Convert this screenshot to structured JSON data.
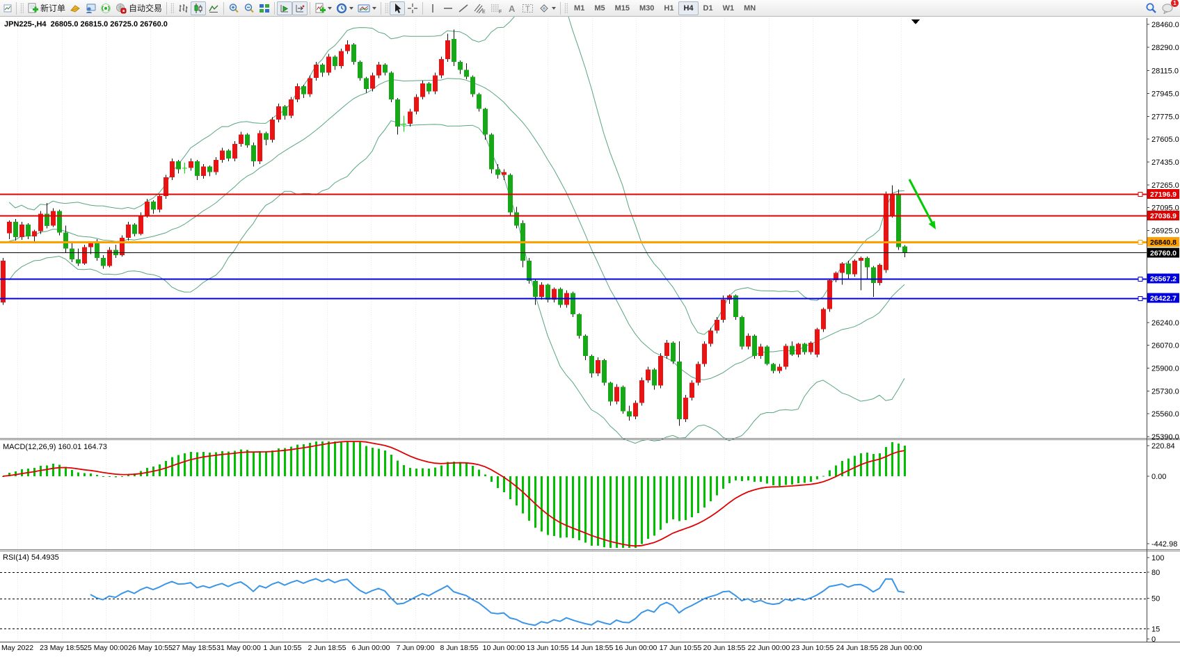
{
  "toolbar": {
    "new_order_label": "新订单",
    "autotrading_label": "自动交易",
    "timeframes": [
      "M1",
      "M5",
      "M15",
      "M30",
      "H1",
      "H4",
      "D1",
      "W1",
      "MN"
    ],
    "active_timeframe": "H4",
    "notification_count": "1",
    "icon_names": [
      "chart-window-icon",
      "new-order-icon",
      "market-watch-icon",
      "terminal-icon",
      "signals-icon",
      "autotrading-icon",
      "bar-chart-icon",
      "candlestick-icon",
      "line-chart-icon",
      "zoom-in-icon",
      "zoom-out-icon",
      "tile-windows-icon",
      "autoscroll-icon",
      "chart-shift-icon",
      "indicators-icon",
      "periods-clock-icon",
      "template-icon",
      "cursor-icon",
      "crosshair-icon",
      "vertical-line-icon",
      "horizontal-line-icon",
      "trendline-icon",
      "channel-icon",
      "fibonacci-icon",
      "text-icon",
      "text-label-icon",
      "shapes-icon",
      "search-icon",
      "notifications-icon"
    ]
  },
  "chart": {
    "symbol_label": "JPN225-,H4",
    "ohlc_label": "26805.0 26815.0 26725.0 26760.0",
    "price_ticks": [
      28460.0,
      28290.0,
      28115.0,
      27945.0,
      27775.0,
      27605.0,
      27435.0,
      27265.0,
      27095.0,
      26925.0,
      26240.0,
      26070.0,
      25900.0,
      25730.0,
      25560.0,
      25390.0
    ],
    "levels": [
      {
        "price": 27196.9,
        "label": "27196.9",
        "color": "#e10000",
        "width": 2,
        "text_color": "#ffffff",
        "handle": true
      },
      {
        "price": 27036.9,
        "label": "27036.9",
        "color": "#e10000",
        "width": 2,
        "text_color": "#ffffff",
        "handle": false
      },
      {
        "price": 26840.8,
        "label": "26840.8",
        "color": "#ffa000",
        "width": 3,
        "text_color": "#000000",
        "handle": true
      },
      {
        "price": 26760.0,
        "label": "26760.0",
        "color": "#000000",
        "width": 1,
        "text_color": "#ffffff",
        "handle": false
      },
      {
        "price": 26567.2,
        "label": "26567.2",
        "color": "#0000dd",
        "width": 2,
        "text_color": "#ffffff",
        "handle": true
      },
      {
        "price": 26422.7,
        "label": "26422.7",
        "color": "#0000dd",
        "width": 2,
        "text_color": "#ffffff",
        "handle": true
      }
    ],
    "time_labels": [
      "May 2022",
      "23 May 18:55",
      "25 May 00:00",
      "26 May 10:55",
      "27 May 18:55",
      "31 May 00:00",
      "1 Jun 10:55",
      "2 Jun 18:55",
      "6 Jun 00:00",
      "7 Jun 09:00",
      "8 Jun 18:55",
      "10 Jun 00:00",
      "13 Jun 10:55",
      "14 Jun 18:55",
      "16 Jun 00:00",
      "17 Jun 10:55",
      "20 Jun 18:55",
      "22 Jun 00:00",
      "23 Jun 10:55",
      "24 Jun 18:55",
      "28 Jun 00:00"
    ]
  },
  "macd_panel": {
    "label": "MACD(12,26,9) 160.01 164.73",
    "axis": [
      {
        "text": "220.84",
        "value": 220.84
      },
      {
        "text": "0.00",
        "value": 0
      },
      {
        "text": "-442.98",
        "value": -442.98
      }
    ]
  },
  "rsi_panel": {
    "label": "RSI(14) 54.4935",
    "axis": [
      {
        "text": "100",
        "value": 100
      },
      {
        "text": "80",
        "value": 80
      },
      {
        "text": "50",
        "value": 50
      },
      {
        "text": "15",
        "value": 15
      },
      {
        "text": "0",
        "value": 0
      }
    ],
    "dashed_levels": [
      80,
      50,
      15
    ]
  },
  "colors": {
    "bull_candle": "#e81414",
    "bear_candle": "#16a816",
    "doji_candle": "#00e000",
    "wick": "#111111",
    "bollinger": "#57a67e",
    "macd_hist": "#00c000",
    "macd_signal": "#e00000",
    "rsi_line": "#3a95e8",
    "annotation_arrow": "#00cc00",
    "grid": "#e9e9e9"
  },
  "chart_data": {
    "type": "candlestick",
    "symbol": "JPN225",
    "timeframe": "H4",
    "title": "JPN225-,H4 26805.0 26815.0 26725.0 26760.0",
    "y_range": [
      25390.0,
      28460.0
    ],
    "indicators": [
      {
        "name": "Bollinger Bands",
        "period": 20,
        "deviation": 2
      },
      {
        "name": "MACD",
        "params": [
          12,
          26,
          9
        ],
        "values": [
          160.01,
          164.73
        ],
        "y_range": [
          -442.98,
          220.84
        ]
      },
      {
        "name": "RSI",
        "params": [
          14
        ],
        "value": 54.4935,
        "levels": [
          80,
          50,
          15
        ],
        "y_range": [
          0,
          100
        ]
      }
    ],
    "ohlc": [
      [
        26390,
        26720,
        26370,
        26700
      ],
      [
        26905,
        27000,
        26860,
        26990
      ],
      [
        26990,
        27010,
        26850,
        26875
      ],
      [
        26875,
        26990,
        26855,
        26970
      ],
      [
        26970,
        26980,
        26860,
        26880
      ],
      [
        26880,
        26930,
        26830,
        26920
      ],
      [
        26920,
        27070,
        26900,
        27050
      ],
      [
        27050,
        27130,
        26940,
        26960
      ],
      [
        26960,
        27090,
        26950,
        27070
      ],
      [
        27070,
        27080,
        26890,
        26910
      ],
      [
        26910,
        26960,
        26760,
        26790
      ],
      [
        26790,
        26830,
        26690,
        26710
      ],
      [
        26710,
        26790,
        26660,
        26680
      ],
      [
        26680,
        26820,
        26670,
        26800
      ],
      [
        26800,
        26840,
        26750,
        26830
      ],
      [
        26830,
        26860,
        26700,
        26720
      ],
      [
        26720,
        26740,
        26640,
        26660
      ],
      [
        26660,
        26800,
        26650,
        26780
      ],
      [
        26780,
        26820,
        26720,
        26740
      ],
      [
        26740,
        26890,
        26730,
        26870
      ],
      [
        26870,
        26990,
        26850,
        26970
      ],
      [
        26970,
        26980,
        26880,
        26900
      ],
      [
        26900,
        27060,
        26890,
        27040
      ],
      [
        27040,
        27160,
        27020,
        27140
      ],
      [
        27140,
        27150,
        27050,
        27080
      ],
      [
        27080,
        27200,
        27060,
        27180
      ],
      [
        27180,
        27340,
        27160,
        27320
      ],
      [
        27320,
        27460,
        27300,
        27440
      ],
      [
        27440,
        27450,
        27350,
        27380
      ],
      [
        27390,
        27430,
        27350,
        27390
      ],
      [
        27390,
        27460,
        27370,
        27440
      ],
      [
        27440,
        27450,
        27300,
        27330
      ],
      [
        27330,
        27420,
        27310,
        27400
      ],
      [
        27400,
        27410,
        27330,
        27360
      ],
      [
        27360,
        27470,
        27340,
        27450
      ],
      [
        27450,
        27540,
        27430,
        27520
      ],
      [
        27520,
        27530,
        27440,
        27460
      ],
      [
        27460,
        27590,
        27440,
        27570
      ],
      [
        27570,
        27660,
        27550,
        27640
      ],
      [
        27640,
        27650,
        27540,
        27560
      ],
      [
        27560,
        27580,
        27400,
        27440
      ],
      [
        27440,
        27670,
        27420,
        27650
      ],
      [
        27650,
        27660,
        27560,
        27600
      ],
      [
        27600,
        27770,
        27580,
        27750
      ],
      [
        27750,
        27870,
        27730,
        27850
      ],
      [
        27850,
        27860,
        27750,
        27780
      ],
      [
        27780,
        27920,
        27760,
        27900
      ],
      [
        27900,
        28020,
        27880,
        28000
      ],
      [
        28000,
        28010,
        27910,
        27940
      ],
      [
        27940,
        28080,
        27920,
        28060
      ],
      [
        28060,
        28180,
        28040,
        28160
      ],
      [
        28160,
        28170,
        28070,
        28100
      ],
      [
        28100,
        28240,
        28080,
        28220
      ],
      [
        28220,
        28230,
        28120,
        28150
      ],
      [
        28150,
        28280,
        28130,
        28260
      ],
      [
        28260,
        28340,
        28240,
        28310
      ],
      [
        28310,
        28320,
        28160,
        28180
      ],
      [
        28180,
        28190,
        28040,
        28060
      ],
      [
        28060,
        28070,
        27950,
        27980
      ],
      [
        27980,
        28100,
        27960,
        28080
      ],
      [
        28080,
        28180,
        28060,
        28160
      ],
      [
        28160,
        28170,
        28080,
        28100
      ],
      [
        28100,
        28110,
        27880,
        27900
      ],
      [
        27900,
        27910,
        27640,
        27700
      ],
      [
        27720,
        27780,
        27660,
        27720
      ],
      [
        27720,
        27830,
        27700,
        27810
      ],
      [
        27810,
        27940,
        27790,
        27920
      ],
      [
        27920,
        28040,
        27900,
        28020
      ],
      [
        28020,
        28030,
        27940,
        27960
      ],
      [
        27960,
        28100,
        27940,
        28080
      ],
      [
        28080,
        28220,
        28060,
        28200
      ],
      [
        28200,
        28390,
        28180,
        28340
      ],
      [
        28350,
        28420,
        28150,
        28180
      ],
      [
        28180,
        28190,
        28090,
        28120
      ],
      [
        28120,
        28170,
        28050,
        28070
      ],
      [
        28070,
        28080,
        27920,
        27940
      ],
      [
        27940,
        27950,
        27810,
        27830
      ],
      [
        27830,
        27840,
        27600,
        27640
      ],
      [
        27640,
        27650,
        27350,
        27380
      ],
      [
        27380,
        27420,
        27310,
        27340
      ],
      [
        27340,
        27380,
        27300,
        27360
      ],
      [
        27340,
        27350,
        27040,
        27060
      ],
      [
        27060,
        27100,
        26940,
        26960
      ],
      [
        26980,
        27000,
        26650,
        26700
      ],
      [
        26700,
        26720,
        26530,
        26550
      ],
      [
        26550,
        26560,
        26370,
        26430
      ],
      [
        26430,
        26540,
        26410,
        26520
      ],
      [
        26520,
        26530,
        26390,
        26410
      ],
      [
        26410,
        26500,
        26390,
        26490
      ],
      [
        26490,
        26500,
        26350,
        26370
      ],
      [
        26370,
        26480,
        26350,
        26460
      ],
      [
        26460,
        26470,
        26280,
        26300
      ],
      [
        26300,
        26310,
        26120,
        26140
      ],
      [
        26140,
        26150,
        25960,
        25990
      ],
      [
        25990,
        26000,
        25830,
        25860
      ],
      [
        25860,
        25980,
        25840,
        25960
      ],
      [
        25960,
        25970,
        25770,
        25790
      ],
      [
        25790,
        25800,
        25620,
        25650
      ],
      [
        25650,
        25780,
        25630,
        25760
      ],
      [
        25760,
        25770,
        25560,
        25580
      ],
      [
        25580,
        25620,
        25510,
        25540
      ],
      [
        25540,
        25660,
        25520,
        25640
      ],
      [
        25640,
        25830,
        25620,
        25810
      ],
      [
        25810,
        25910,
        25790,
        25890
      ],
      [
        25890,
        25900,
        25740,
        25770
      ],
      [
        25770,
        26010,
        25750,
        25990
      ],
      [
        25990,
        26110,
        25970,
        26090
      ],
      [
        26090,
        26100,
        25930,
        25950
      ],
      [
        25950,
        26100,
        25470,
        25520
      ],
      [
        25520,
        25700,
        25500,
        25680
      ],
      [
        25680,
        25810,
        25660,
        25790
      ],
      [
        25790,
        25950,
        25770,
        25930
      ],
      [
        25930,
        26100,
        25910,
        26080
      ],
      [
        26080,
        26200,
        26060,
        26180
      ],
      [
        26180,
        26280,
        26160,
        26260
      ],
      [
        26260,
        26440,
        26240,
        26410
      ],
      [
        26410,
        26450,
        26380,
        26440
      ],
      [
        26440,
        26450,
        26260,
        26280
      ],
      [
        26280,
        26290,
        26040,
        26060
      ],
      [
        26060,
        26160,
        26040,
        26140
      ],
      [
        26140,
        26150,
        25970,
        25990
      ],
      [
        25990,
        26080,
        25970,
        26060
      ],
      [
        26060,
        26070,
        25920,
        25930
      ],
      [
        25930,
        25940,
        25860,
        25880
      ],
      [
        25880,
        25930,
        25860,
        25910
      ],
      [
        25910,
        26080,
        25890,
        26065
      ],
      [
        26065,
        26100,
        25990,
        26000
      ],
      [
        26000,
        26090,
        25980,
        26080
      ],
      [
        26080,
        26090,
        26000,
        26020
      ],
      [
        26020,
        26100,
        26000,
        26090
      ],
      [
        26000,
        26200,
        25980,
        26190
      ],
      [
        26190,
        26350,
        26170,
        26340
      ],
      [
        26340,
        26560,
        26320,
        26555
      ],
      [
        26555,
        26620,
        26540,
        26610
      ],
      [
        26610,
        26690,
        26520,
        26680
      ],
      [
        26680,
        26700,
        26560,
        26600
      ],
      [
        26600,
        26710,
        26580,
        26700
      ],
      [
        26700,
        26730,
        26480,
        26720
      ],
      [
        26720,
        26730,
        26560,
        26650
      ],
      [
        26650,
        26660,
        26430,
        26535
      ],
      [
        26535,
        26680,
        26515,
        26670
      ],
      [
        26630,
        27215,
        26610,
        27195
      ],
      [
        27040,
        27262,
        27020,
        27190
      ],
      [
        27190,
        27230,
        26780,
        26800
      ],
      [
        26805,
        26815,
        26725,
        26760
      ]
    ]
  }
}
